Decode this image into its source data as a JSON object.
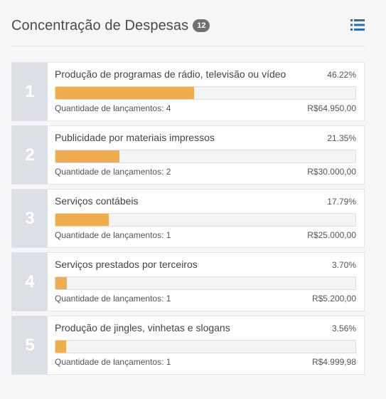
{
  "panel": {
    "title": "Concentração de Despesas",
    "badge": "12",
    "menu_icon": "list-icon"
  },
  "colors": {
    "bar_fill": "#f0ad4e",
    "rank_bg": "#dcdfe6",
    "badge_bg": "#6f6f6f",
    "icon": "#2a6fb0"
  },
  "items": [
    {
      "rank": "1",
      "name": "Produção de programas de rádio, televisão ou vídeo",
      "percent_text": "46.22%",
      "percent": 46.22,
      "count_text": "Quantidade de lançamentos: 4",
      "amount": "R$64.950,00"
    },
    {
      "rank": "2",
      "name": "Publicidade por materiais impressos",
      "percent_text": "21.35%",
      "percent": 21.35,
      "count_text": "Quantidade de lançamentos: 2",
      "amount": "R$30.000,00"
    },
    {
      "rank": "3",
      "name": "Serviços contábeis",
      "percent_text": "17.79%",
      "percent": 17.79,
      "count_text": "Quantidade de lançamentos: 1",
      "amount": "R$25.000,00"
    },
    {
      "rank": "4",
      "name": "Serviços prestados por terceiros",
      "percent_text": "3.70%",
      "percent": 3.7,
      "count_text": "Quantidade de lançamentos: 1",
      "amount": "R$5.200,00"
    },
    {
      "rank": "5",
      "name": "Produção de jingles, vinhetas e slogans",
      "percent_text": "3.56%",
      "percent": 3.56,
      "count_text": "Quantidade de lançamentos: 1",
      "amount": "R$4.999,98"
    }
  ]
}
